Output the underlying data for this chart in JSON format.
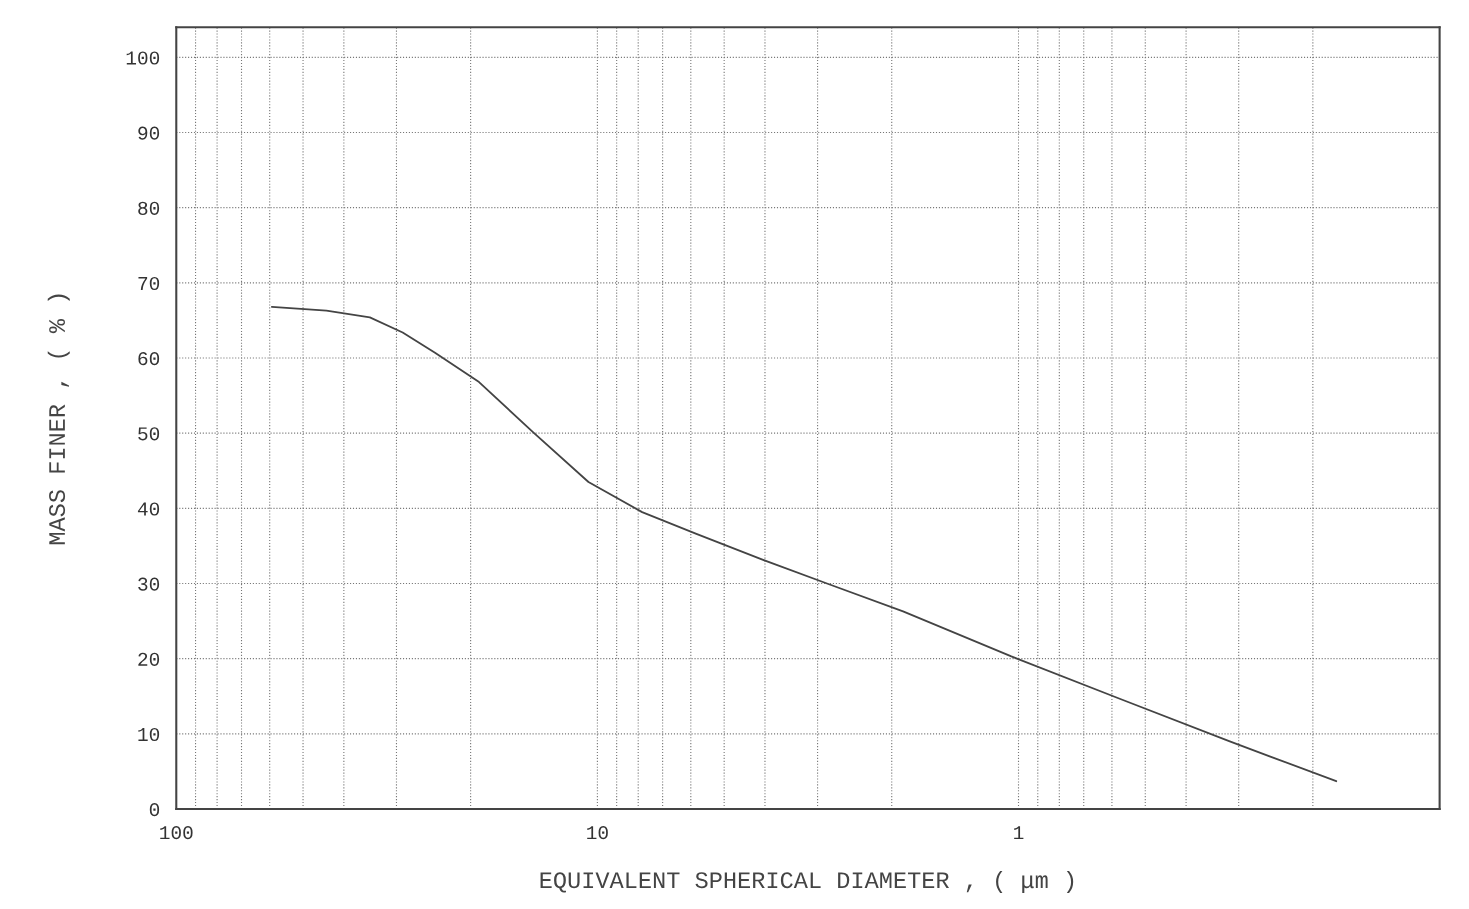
{
  "chart_data": {
    "type": "line",
    "xlabel": "EQUIVALENT SPHERICAL DIAMETER , ( μm )",
    "ylabel": "MASS FINER , ( % )",
    "log": "x",
    "xlim": [
      100,
      0.1
    ],
    "ylim": [
      0,
      104
    ],
    "xticks": [
      100,
      10,
      1,
      {
        "value": 0.1,
        "label": null
      }
    ],
    "yticks": [
      0,
      10,
      20,
      30,
      40,
      50,
      60,
      70,
      80,
      90,
      100
    ],
    "grid": true,
    "marker": "none",
    "line_style": "solid",
    "series": [
      {
        "color": "#444444",
        "x": [
          59.3,
          44,
          34.7,
          29,
          24.3,
          19.1,
          14.2,
          10.5,
          7.83,
          5.82,
          4.07,
          2.85,
          1.88,
          1.04,
          0.571,
          0.315,
          0.176
        ],
        "values": [
          66.8,
          66.3,
          65.4,
          63.4,
          60.7,
          56.8,
          50.1,
          43.5,
          39.5,
          36.6,
          33.2,
          30.0,
          26.3,
          20.3,
          14.6,
          9.0,
          3.7
        ]
      }
    ]
  }
}
